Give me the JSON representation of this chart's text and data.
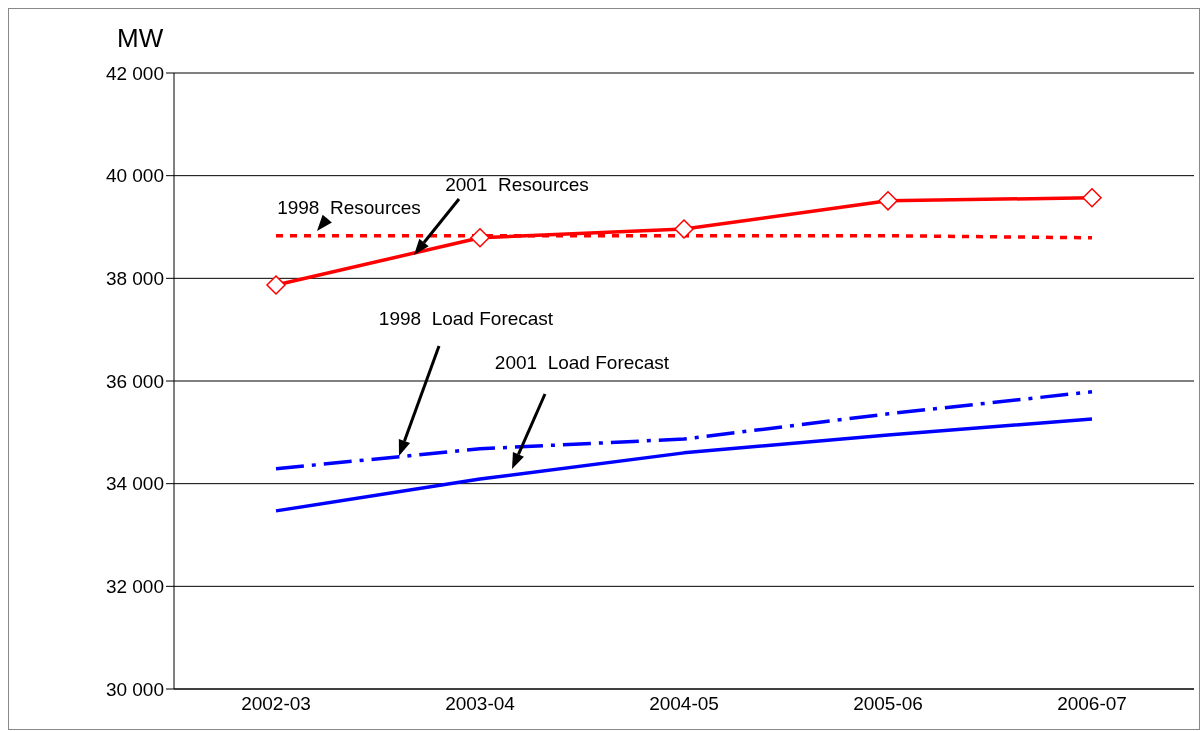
{
  "chart_data": {
    "type": "line",
    "ylabel": "MW",
    "categories": [
      "2002-03",
      "2003-04",
      "2004-05",
      "2005-06",
      "2006-07"
    ],
    "series": [
      {
        "name": "1998  Resources",
        "color": "#ff0000",
        "line_style": "dotted",
        "marker": "none",
        "values": [
          38830,
          38830,
          38830,
          38830,
          38790
        ]
      },
      {
        "name": "2001  Resources",
        "color": "#ff0000",
        "line_style": "solid",
        "marker": "diamond",
        "values": [
          37870,
          38790,
          38960,
          39510,
          39570
        ]
      },
      {
        "name": "1998  Load Forecast",
        "color": "#0000ff",
        "line_style": "dashed",
        "marker": "none",
        "values": [
          34290,
          34680,
          34870,
          35360,
          35790
        ]
      },
      {
        "name": "2001  Load Forecast",
        "color": "#0000ff",
        "line_style": "solid",
        "marker": "none",
        "values": [
          33470,
          34090,
          34600,
          34950,
          35260
        ]
      }
    ],
    "ylim": [
      30000,
      42000
    ],
    "yticks": [
      30000,
      32000,
      34000,
      36000,
      38000,
      40000,
      42000
    ],
    "grid": "y"
  }
}
